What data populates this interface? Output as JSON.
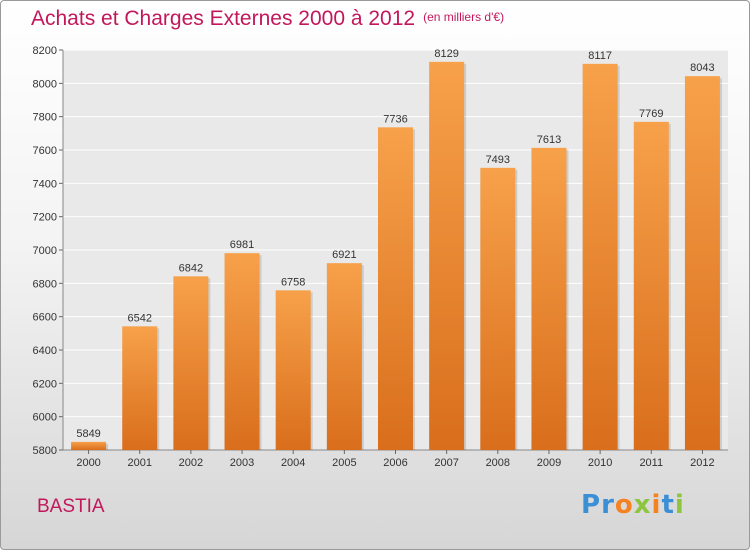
{
  "title": "Achats et Charges Externes 2000 à 2012",
  "unit": "(en milliers d'€)",
  "city": "BASTIA",
  "logo": {
    "letters": [
      "P",
      "r",
      "o",
      "x",
      "i",
      "t",
      "i"
    ],
    "colors": [
      "#3b8fd6",
      "#3b8fd6",
      "#f58220",
      "#8cc63f",
      "#f58220",
      "#3b8fd6",
      "#8cc63f"
    ]
  },
  "colors": {
    "bar_top": "#f7a14a",
    "bar_bottom": "#d96e1c",
    "title": "#c2185b",
    "grid": "#ffffff"
  },
  "chart_data": {
    "type": "bar",
    "title": "Achats et Charges Externes 2000 à 2012",
    "categories": [
      "2000",
      "2001",
      "2002",
      "2003",
      "2004",
      "2005",
      "2006",
      "2007",
      "2008",
      "2009",
      "2010",
      "2011",
      "2012"
    ],
    "values": [
      5849,
      6542,
      6842,
      6981,
      6758,
      6921,
      7736,
      8129,
      7493,
      7613,
      8117,
      7769,
      8043
    ],
    "ylim": [
      5800,
      8200
    ],
    "yticks": [
      5800,
      6000,
      6200,
      6400,
      6600,
      6800,
      7000,
      7200,
      7400,
      7600,
      7800,
      8000,
      8200
    ],
    "grid": true
  }
}
